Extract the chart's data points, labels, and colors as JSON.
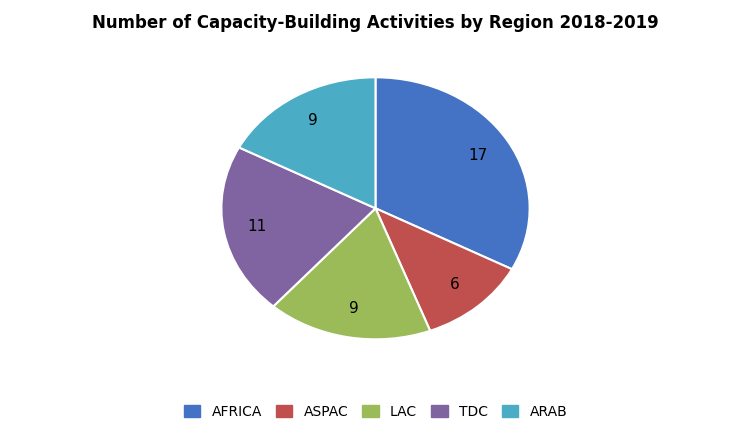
{
  "title": "Number of Capacity-Building Activities by Region 2018-2019",
  "labels": [
    "AFRICA",
    "ASPAC",
    "LAC",
    "TDC",
    "ARAB"
  ],
  "values": [
    17,
    6,
    9,
    11,
    9
  ],
  "colors": [
    "#4472C4",
    "#C0504D",
    "#9BBB59",
    "#8064A2",
    "#4BACC6"
  ],
  "startangle": 90,
  "counterclock": false,
  "title_fontsize": 12,
  "legend_fontsize": 10,
  "autopct_fontsize": 11,
  "pctdistance": 0.78
}
